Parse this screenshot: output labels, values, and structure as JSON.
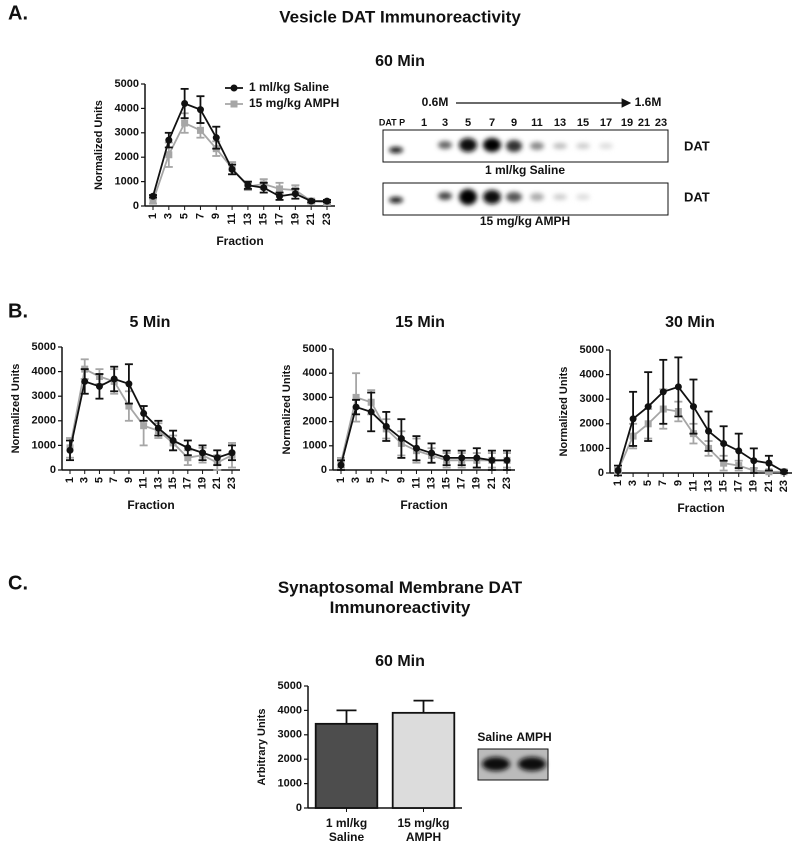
{
  "labels": {
    "panel_a": "A.",
    "panel_b": "B.",
    "panel_c": "C.",
    "heading_a": "Vesicle DAT Immunoreactivity",
    "heading_c": "Synaptosomal Membrane DAT Immunoreactivity"
  },
  "blots": {
    "lane_dat_p": "DAT P",
    "lanes": [
      "1",
      "3",
      "5",
      "7",
      "9",
      "11",
      "13",
      "15",
      "17",
      "19",
      "21",
      "23"
    ],
    "gradient_start": "0.6M",
    "gradient_end": "1.6M",
    "band_label_1": "DAT",
    "band_label_2": "DAT",
    "blot_1_label": "1 ml/kg Saline",
    "blot_2_label": "15 mg/kg AMPH",
    "c_lane_1": "Saline",
    "c_lane_2": "AMPH"
  },
  "chart_data": [
    {
      "type": "line",
      "title": "60 Min",
      "ylabel": "Normalized Units",
      "xlabel": "Fraction",
      "legend": "top-right",
      "categories": [
        "1",
        "3",
        "5",
        "7",
        "9",
        "11",
        "13",
        "15",
        "17",
        "19",
        "21",
        "23"
      ],
      "ylim": [
        0,
        5000
      ],
      "yticks": [
        0,
        1000,
        2000,
        3000,
        4000,
        5000
      ],
      "series": [
        {
          "name": "1 ml/kg Saline",
          "color": "#111111",
          "marker": "circle",
          "values": [
            400,
            2700,
            4200,
            3950,
            2800,
            1500,
            850,
            750,
            400,
            500,
            200,
            200
          ],
          "errors": [
            50,
            300,
            600,
            550,
            450,
            200,
            150,
            200,
            150,
            200,
            50,
            50
          ]
        },
        {
          "name": "15 mg/kg AMPH",
          "color": "#a6a6a6",
          "marker": "square",
          "values": [
            200,
            2100,
            3400,
            3100,
            2350,
            1550,
            800,
            900,
            700,
            650,
            200,
            150
          ],
          "errors": [
            100,
            500,
            400,
            300,
            300,
            250,
            150,
            200,
            250,
            200,
            100,
            100
          ]
        }
      ]
    },
    {
      "type": "line",
      "title": "5 Min",
      "ylabel": "Normalized Units",
      "xlabel": "Fraction",
      "categories": [
        "1",
        "3",
        "5",
        "7",
        "9",
        "11",
        "13",
        "15",
        "17",
        "19",
        "21",
        "23"
      ],
      "ylim": [
        0,
        5000
      ],
      "yticks": [
        0,
        1000,
        2000,
        3000,
        4000,
        5000
      ],
      "series": [
        {
          "name": "1 ml/kg Saline",
          "color": "#111111",
          "marker": "circle",
          "values": [
            800,
            3600,
            3400,
            3700,
            3500,
            2300,
            1700,
            1200,
            900,
            700,
            500,
            700
          ],
          "errors": [
            400,
            500,
            500,
            500,
            800,
            300,
            300,
            400,
            300,
            300,
            300,
            300
          ]
        },
        {
          "name": "15 mg/kg AMPH",
          "color": "#a6a6a6",
          "marker": "square",
          "values": [
            900,
            4100,
            3800,
            3600,
            2600,
            1800,
            1600,
            1100,
            500,
            600,
            300,
            600
          ],
          "errors": [
            400,
            400,
            300,
            500,
            600,
            800,
            300,
            300,
            300,
            300,
            300,
            500
          ]
        }
      ]
    },
    {
      "type": "line",
      "title": "15 Min",
      "ylabel": "Normalized Units",
      "xlabel": "Fraction",
      "categories": [
        "1",
        "3",
        "5",
        "7",
        "9",
        "11",
        "13",
        "15",
        "17",
        "19",
        "21",
        "23"
      ],
      "ylim": [
        0,
        5000
      ],
      "yticks": [
        0,
        1000,
        2000,
        3000,
        4000,
        5000
      ],
      "series": [
        {
          "name": "1 ml/kg Saline",
          "color": "#111111",
          "marker": "circle",
          "values": [
            200,
            2600,
            2400,
            1800,
            1300,
            900,
            700,
            500,
            500,
            500,
            400,
            400
          ],
          "errors": [
            200,
            300,
            800,
            600,
            800,
            500,
            400,
            300,
            300,
            400,
            400,
            400
          ]
        },
        {
          "name": "15 mg/kg AMPH",
          "color": "#a6a6a6",
          "marker": "square",
          "values": [
            300,
            3000,
            2800,
            1700,
            1100,
            800,
            600,
            400,
            400,
            400,
            400,
            400
          ],
          "errors": [
            200,
            1000,
            500,
            400,
            500,
            500,
            300,
            300,
            300,
            300,
            300,
            300
          ]
        }
      ]
    },
    {
      "type": "line",
      "title": "30 Min",
      "ylabel": "Normalized Units",
      "xlabel": "Fraction",
      "categories": [
        "1",
        "3",
        "5",
        "7",
        "9",
        "11",
        "13",
        "15",
        "17",
        "19",
        "21",
        "23"
      ],
      "ylim": [
        0,
        5000
      ],
      "yticks": [
        0,
        1000,
        2000,
        3000,
        4000,
        5000
      ],
      "series": [
        {
          "name": "1 ml/kg Saline",
          "color": "#111111",
          "marker": "circle",
          "values": [
            100,
            2200,
            2700,
            3300,
            3500,
            2700,
            1700,
            1200,
            900,
            500,
            400,
            50
          ],
          "errors": [
            200,
            1100,
            1400,
            1300,
            1200,
            1100,
            800,
            700,
            700,
            500,
            300,
            50
          ]
        },
        {
          "name": "15 mg/kg AMPH",
          "color": "#a6a6a6",
          "marker": "square",
          "values": [
            100,
            1500,
            2000,
            2600,
            2500,
            1600,
            1000,
            400,
            300,
            100,
            50,
            50
          ],
          "errors": [
            100,
            500,
            600,
            800,
            400,
            400,
            300,
            300,
            200,
            100,
            50,
            50
          ]
        }
      ]
    },
    {
      "type": "bar",
      "title": "60 Min",
      "ylabel": "Arbitrary Units",
      "categories": [
        "1 ml/kg Saline",
        "15 mg/kg AMPH"
      ],
      "values": [
        3450,
        3900
      ],
      "errors": [
        550,
        500
      ],
      "colors": [
        "#4d4d4d",
        "#dcdcdc"
      ],
      "ylim": [
        0,
        5000
      ],
      "yticks": [
        0,
        1000,
        2000,
        3000,
        4000,
        5000
      ]
    }
  ]
}
